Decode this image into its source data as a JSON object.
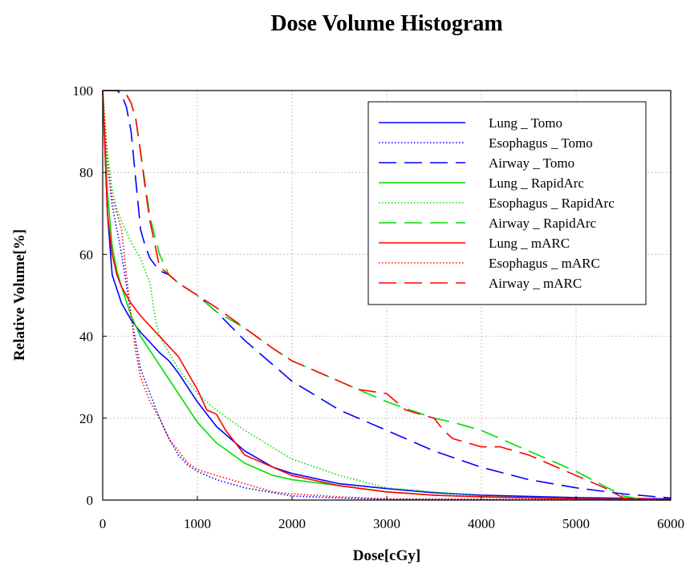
{
  "chart_data": {
    "type": "line",
    "title": "Dose Volume Histogram",
    "xlabel": "Dose[cGy]",
    "ylabel": "Relative Volume[%]",
    "xlim": [
      0,
      6000
    ],
    "ylim": [
      0,
      100
    ],
    "xticks": [
      "0",
      "1000",
      "2000",
      "3000",
      "4000",
      "5000",
      "6000"
    ],
    "yticks": [
      "0",
      "20",
      "40",
      "60",
      "80",
      "100"
    ],
    "grid": true,
    "legend_position": "top-right",
    "series": [
      {
        "name": "Lung _ Tomo",
        "color": "#0000ff",
        "dash": "solid",
        "x": [
          0,
          50,
          100,
          200,
          300,
          400,
          600,
          700,
          800,
          1000,
          1200,
          1500,
          1800,
          2000,
          2500,
          3000,
          3500,
          4000,
          5000,
          6000
        ],
        "y": [
          100,
          70,
          55,
          48,
          44,
          41,
          36,
          34,
          31,
          24,
          18,
          12,
          8,
          6.5,
          4,
          2.8,
          1.8,
          1.2,
          0.6,
          0.3
        ]
      },
      {
        "name": "Esophagus _ Tomo",
        "color": "#0000ff",
        "dash": "dotted",
        "x": [
          0,
          50,
          100,
          200,
          300,
          400,
          500,
          600,
          700,
          800,
          900,
          1000,
          1200,
          1500,
          1800,
          2000,
          2500,
          3000,
          6000
        ],
        "y": [
          100,
          82,
          72,
          60,
          45,
          32,
          26,
          20,
          15,
          11,
          8.5,
          7,
          5,
          3,
          1.8,
          1,
          0.5,
          0.2,
          0
        ]
      },
      {
        "name": "Airway _ Tomo",
        "color": "#0000ff",
        "dash": "dashed",
        "x": [
          0,
          100,
          150,
          200,
          250,
          300,
          350,
          400,
          450,
          500,
          600,
          700,
          800,
          1000,
          1200,
          1500,
          1800,
          2000,
          2500,
          3000,
          3500,
          4000,
          4500,
          5000,
          5500,
          6000
        ],
        "y": [
          100,
          100,
          100,
          99,
          96,
          90,
          78,
          66,
          62,
          59,
          56,
          55,
          53,
          50,
          46,
          39,
          33,
          29,
          22,
          17,
          12,
          8,
          5,
          3,
          1.5,
          0.5
        ]
      },
      {
        "name": "Lung _ RapidArc",
        "color": "#00dd00",
        "dash": "solid",
        "x": [
          0,
          50,
          100,
          150,
          200,
          300,
          400,
          600,
          800,
          1000,
          1200,
          1500,
          1800,
          2000,
          2500,
          3000,
          3500,
          4000,
          5000,
          6000
        ],
        "y": [
          100,
          75,
          62,
          56,
          52,
          45,
          40,
          33,
          26,
          19,
          14,
          9,
          6,
          5,
          3.5,
          2,
          1.2,
          0.8,
          0.3,
          0.1
        ]
      },
      {
        "name": "Esophagus _ RapidArc",
        "color": "#00dd00",
        "dash": "dotted",
        "x": [
          0,
          50,
          100,
          150,
          200,
          300,
          400,
          500,
          550,
          600,
          700,
          800,
          1000,
          1200,
          1500,
          2000,
          2500,
          3000,
          4000,
          5000
        ],
        "y": [
          100,
          85,
          76,
          71,
          68,
          63,
          59,
          53,
          45,
          40,
          36,
          32,
          26,
          22,
          17,
          10,
          6,
          3,
          1,
          0
        ]
      },
      {
        "name": "Airway _ RapidArc",
        "color": "#00dd00",
        "dash": "dashed",
        "x": [
          0,
          100,
          200,
          250,
          300,
          350,
          400,
          450,
          500,
          600,
          700,
          800,
          1000,
          1200,
          1500,
          1800,
          2000,
          2500,
          3000,
          3500,
          3700,
          4000,
          4500,
          5000,
          5500,
          5700,
          6000
        ],
        "y": [
          100,
          100,
          100,
          99,
          97,
          93,
          85,
          77,
          69,
          60,
          55,
          53,
          50,
          46,
          42,
          37,
          34,
          29,
          24,
          20,
          19,
          17,
          12,
          7,
          1,
          0.2,
          0
        ]
      },
      {
        "name": "Lung _ mARC",
        "color": "#ff0000",
        "dash": "solid",
        "x": [
          0,
          50,
          100,
          150,
          200,
          300,
          400,
          600,
          800,
          1000,
          1100,
          1200,
          1300,
          1500,
          1800,
          2000,
          2500,
          3000,
          3500,
          4000,
          5000,
          6000
        ],
        "y": [
          100,
          70,
          60,
          55,
          52,
          48,
          45,
          40,
          35,
          27,
          22,
          21,
          17,
          11,
          8,
          6,
          3.5,
          2,
          1.2,
          0.8,
          0.3,
          0.1
        ]
      },
      {
        "name": "Esophagus _ mARC",
        "color": "#ff0000",
        "dash": "dotted",
        "x": [
          0,
          50,
          100,
          150,
          200,
          250,
          300,
          350,
          400,
          500,
          600,
          700,
          800,
          900,
          1000,
          1200,
          1500,
          1800,
          2000,
          2500,
          3000,
          6000
        ],
        "y": [
          100,
          82,
          74,
          70,
          66,
          55,
          45,
          36,
          30,
          24,
          20,
          15,
          12,
          9,
          7.5,
          6,
          4,
          2,
          1.5,
          0.8,
          0.3,
          0
        ]
      },
      {
        "name": "Airway _ mARC",
        "color": "#ff0000",
        "dash": "dashed",
        "x": [
          0,
          100,
          200,
          250,
          300,
          350,
          400,
          450,
          500,
          600,
          700,
          800,
          1000,
          1200,
          1500,
          1800,
          2000,
          2200,
          2500,
          2700,
          3000,
          3200,
          3500,
          3600,
          3700,
          4000,
          4200,
          4500,
          5000,
          5300,
          5500,
          6000
        ],
        "y": [
          100,
          100,
          100,
          99,
          97,
          93,
          85,
          76,
          68,
          57,
          55,
          53,
          50,
          47,
          42,
          37,
          34,
          32,
          29,
          27,
          26,
          22,
          20,
          17,
          15,
          13,
          13,
          11,
          6,
          3,
          0.5,
          0
        ]
      }
    ]
  }
}
